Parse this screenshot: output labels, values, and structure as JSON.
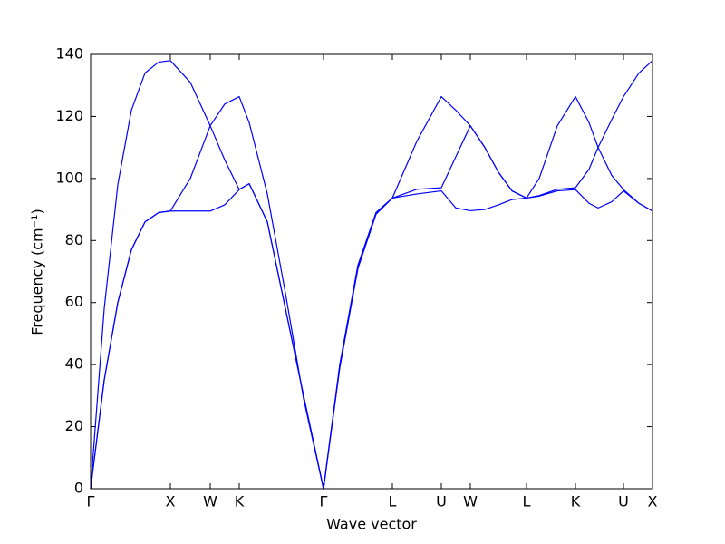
{
  "chart_data": {
    "type": "line",
    "xlabel": "Wave vector",
    "ylabel": "Frequency (cm⁻¹)",
    "x": [
      0,
      0.15,
      0.3,
      0.45,
      0.6,
      0.75,
      0.88,
      1.1,
      1.32,
      1.48,
      1.64,
      1.75,
      1.95,
      2.15,
      2.35,
      2.57,
      2.75,
      2.95,
      3.15,
      3.33,
      3.6,
      3.87,
      4.03,
      4.19,
      4.35,
      4.5,
      4.65,
      4.81,
      4.95,
      5.15,
      5.35,
      5.5,
      5.6,
      5.75,
      5.88,
      6.05,
      6.2
    ],
    "series": [
      {
        "color": "#0000ff",
        "values": [
          0,
          58,
          98,
          122,
          134,
          137.5,
          138,
          131,
          117,
          106,
          96.4,
          98.3,
          86,
          58,
          30,
          0,
          40,
          72,
          89,
          93.7,
          112,
          126.4,
          122,
          117,
          110,
          102,
          96,
          93.7,
          100,
          117,
          126.4,
          118,
          110,
          101,
          96.4,
          92,
          89.5
        ]
      },
      {
        "color": "#0000ff",
        "values": [
          0,
          35,
          60,
          77,
          86,
          89,
          89.5,
          100,
          117,
          124,
          126.4,
          118,
          95,
          63,
          29,
          0,
          40,
          72,
          89,
          93.7,
          96.5,
          97,
          107,
          117,
          110,
          102,
          96,
          93.7,
          94.5,
          96.5,
          97,
          103,
          110,
          119,
          126.4,
          134,
          138
        ]
      },
      {
        "color": "#0000ff",
        "values": [
          0,
          35,
          60,
          77,
          86,
          89,
          89.5,
          89.5,
          89.5,
          91.5,
          96.4,
          98.3,
          86,
          58,
          30,
          0,
          39,
          71,
          88.5,
          93.7,
          95,
          96,
          90.5,
          89.6,
          90,
          91.5,
          93.2,
          93.7,
          94.3,
          96,
          96.4,
          92,
          90.5,
          92.5,
          96,
          92,
          89.5
        ]
      }
    ],
    "xlim": [
      0,
      6.2
    ],
    "xticks": [
      {
        "value": 0,
        "label": "Γ"
      },
      {
        "value": 0.88,
        "label": "X"
      },
      {
        "value": 1.32,
        "label": "W"
      },
      {
        "value": 1.64,
        "label": "K"
      },
      {
        "value": 2.57,
        "label": "Γ"
      },
      {
        "value": 3.33,
        "label": "L"
      },
      {
        "value": 3.87,
        "label": "U"
      },
      {
        "value": 4.19,
        "label": "W"
      },
      {
        "value": 4.81,
        "label": "L"
      },
      {
        "value": 5.35,
        "label": "K"
      },
      {
        "value": 5.88,
        "label": "U"
      },
      {
        "value": 6.2,
        "label": "X"
      }
    ],
    "ylim": [
      0,
      140
    ],
    "yticks": [
      0,
      20,
      40,
      60,
      80,
      100,
      120,
      140
    ]
  }
}
